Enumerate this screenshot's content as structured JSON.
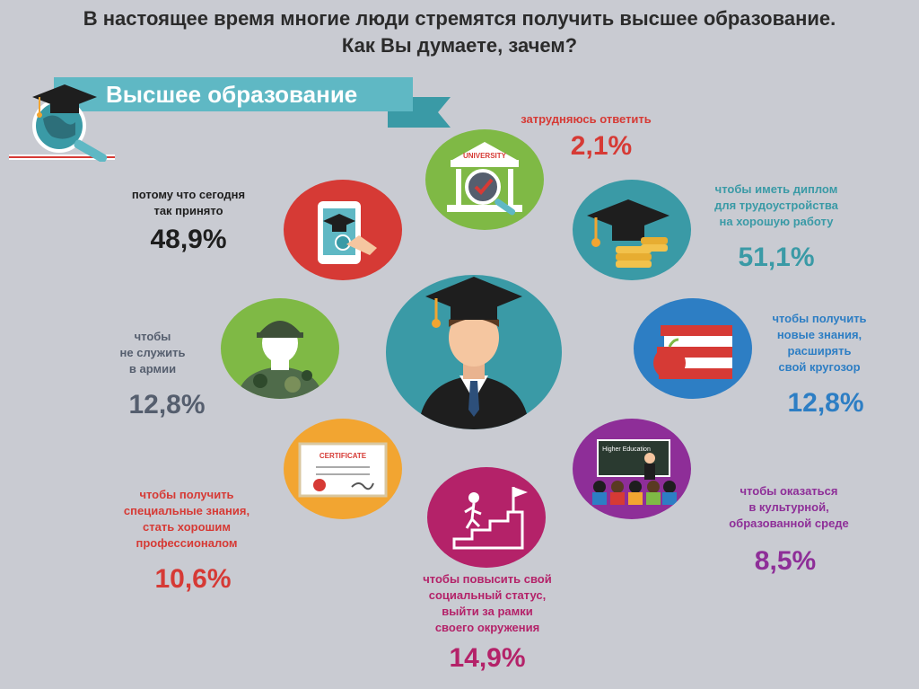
{
  "title": {
    "line1": "В настоящее время многие люди стремятся получить высшее образование.",
    "line2": "Как Вы думаете, зачем?"
  },
  "banner": {
    "text": "Высшее образование"
  },
  "colors": {
    "red": "#d63a35",
    "teal": "#3a9aa6",
    "blue": "#2d7ec4",
    "purple": "#8e2e98",
    "gray": "#555e6e",
    "pink": "#b42269",
    "black": "#1e1e1e",
    "orange": "#f2a531",
    "green": "#7fb945"
  },
  "items": [
    {
      "id": "hard-to-answer",
      "label_lines": [
        "затрудняюсь ответить"
      ],
      "value": "2,1%",
      "icon": "university-icon"
    },
    {
      "id": "diploma",
      "label_lines": [
        "чтобы иметь диплом",
        "для трудоустройства",
        "на хорошую работу"
      ],
      "value": "51,1%",
      "icon": "graduation-cap-coins-icon"
    },
    {
      "id": "new-knowledge",
      "label_lines": [
        "чтобы получить",
        "новые знания,",
        "расширять",
        "свой кругозор"
      ],
      "value": "12,8%",
      "icon": "books-apple-icon"
    },
    {
      "id": "cultural-environment",
      "label_lines": [
        "чтобы оказаться",
        "в культурной,",
        "образованной среде"
      ],
      "value": "8,5%",
      "icon": "classroom-icon"
    },
    {
      "id": "social-status",
      "label_lines": [
        "чтобы повысить свой",
        "социальный статус,",
        "выйти за рамки",
        "своего окружения"
      ],
      "value": "14,9%",
      "icon": "stairs-flag-icon"
    },
    {
      "id": "special-knowledge",
      "label_lines": [
        "чтобы получить",
        "специальные знания,",
        "стать хорошим",
        "профессионалом"
      ],
      "value": "10,6%",
      "icon": "certificate-icon"
    },
    {
      "id": "army",
      "label_lines": [
        "чтобы",
        "не служить",
        "в армии"
      ],
      "value": "12,8%",
      "icon": "soldier-icon"
    },
    {
      "id": "accepted",
      "label_lines": [
        "потому что сегодня",
        "так принято"
      ],
      "value": "48,9%",
      "icon": "tablet-cap-icon"
    }
  ]
}
